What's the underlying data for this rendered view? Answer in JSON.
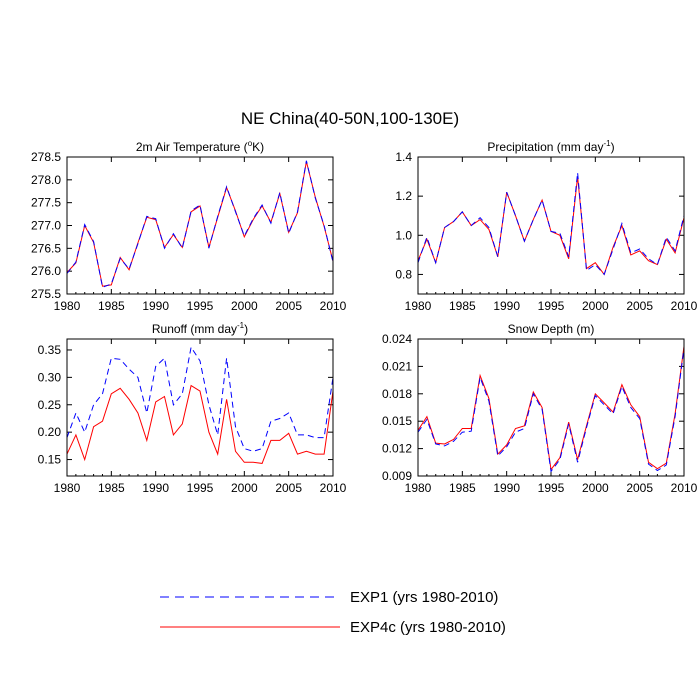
{
  "title": "NE China(40-50N,100-130E)",
  "colors": {
    "exp1": "#0000ff",
    "exp4c": "#ff0000"
  },
  "legend": [
    {
      "label": "EXP1 (yrs 1980-2010)",
      "color": "#0000ff",
      "dash": "dashed"
    },
    {
      "label": "EXP4c (yrs 1980-2010)",
      "color": "#ff0000",
      "dash": "solid"
    }
  ],
  "chart_data": [
    {
      "type": "line",
      "title": "2m Air Temperature (°K)",
      "title_main": "2m Air Temperature (",
      "title_sup": "o",
      "title_end": "K)",
      "x": [
        1980,
        1981,
        1982,
        1983,
        1984,
        1985,
        1986,
        1987,
        1988,
        1989,
        1990,
        1991,
        1992,
        1993,
        1994,
        1995,
        1996,
        1997,
        1998,
        1999,
        2000,
        2001,
        2002,
        2003,
        2004,
        2005,
        2006,
        2007,
        2008,
        2009,
        2010
      ],
      "xlim": [
        1980,
        2010
      ],
      "xticks": [
        "1980",
        "1985",
        "1990",
        "1995",
        "2000",
        "2005",
        "2010"
      ],
      "ylim": [
        275.5,
        278.5
      ],
      "yticks": [
        "275.5",
        "276.0",
        "276.5",
        "277.0",
        "277.5",
        "278.0",
        "278.5"
      ],
      "series": [
        {
          "name": "EXP1",
          "values": [
            275.95,
            276.2,
            277.02,
            276.65,
            275.65,
            275.72,
            276.28,
            276.05,
            276.6,
            277.2,
            277.15,
            276.5,
            276.82,
            276.5,
            277.32,
            277.45,
            276.5,
            277.2,
            277.85,
            277.3,
            276.77,
            277.15,
            277.45,
            277.05,
            277.72,
            276.83,
            277.3,
            278.42,
            277.6,
            277.0,
            276.2
          ]
        },
        {
          "name": "EXP4c",
          "values": [
            275.97,
            276.18,
            277.0,
            276.63,
            275.67,
            275.7,
            276.3,
            276.03,
            276.62,
            277.18,
            277.13,
            276.52,
            276.8,
            276.52,
            277.3,
            277.43,
            276.52,
            277.18,
            277.83,
            277.32,
            276.75,
            277.13,
            277.43,
            277.07,
            277.7,
            276.85,
            277.28,
            278.4,
            277.62,
            276.98,
            276.22
          ]
        }
      ]
    },
    {
      "type": "line",
      "title": "Precipitation (mm day-1)",
      "title_main": "Precipitation (mm day",
      "title_sup": "-1",
      "title_end": ")",
      "x": [
        1980,
        1981,
        1982,
        1983,
        1984,
        1985,
        1986,
        1987,
        1988,
        1989,
        1990,
        1991,
        1992,
        1993,
        1994,
        1995,
        1996,
        1997,
        1998,
        1999,
        2000,
        2001,
        2002,
        2003,
        2004,
        2005,
        2006,
        2007,
        2008,
        2009,
        2010
      ],
      "xlim": [
        1980,
        2010
      ],
      "xticks": [
        "1980",
        "1985",
        "1990",
        "1995",
        "2000",
        "2005",
        "2010"
      ],
      "ylim": [
        0.7,
        1.4
      ],
      "yticks": [
        "0.8",
        "1.0",
        "1.2",
        "1.4"
      ],
      "series": [
        {
          "name": "EXP1",
          "values": [
            0.86,
            0.99,
            0.86,
            1.04,
            1.07,
            1.12,
            1.05,
            1.09,
            1.04,
            0.89,
            1.22,
            1.1,
            0.97,
            1.08,
            1.18,
            1.02,
            1.01,
            0.89,
            1.32,
            0.82,
            0.85,
            0.8,
            0.93,
            1.06,
            0.91,
            0.93,
            0.88,
            0.85,
            0.99,
            0.92,
            1.1
          ]
        },
        {
          "name": "EXP4c",
          "values": [
            0.87,
            0.98,
            0.86,
            1.04,
            1.07,
            1.12,
            1.05,
            1.08,
            1.03,
            0.89,
            1.22,
            1.1,
            0.97,
            1.08,
            1.18,
            1.02,
            1.0,
            0.88,
            1.3,
            0.83,
            0.86,
            0.8,
            0.94,
            1.05,
            0.9,
            0.92,
            0.87,
            0.85,
            0.98,
            0.91,
            1.09
          ]
        }
      ]
    },
    {
      "type": "line",
      "title": "Runoff (mm day-1)",
      "title_main": "Runoff (mm day",
      "title_sup": "-1",
      "title_end": ")",
      "x": [
        1980,
        1981,
        1982,
        1983,
        1984,
        1985,
        1986,
        1987,
        1988,
        1989,
        1990,
        1991,
        1992,
        1993,
        1994,
        1995,
        1996,
        1997,
        1998,
        1999,
        2000,
        2001,
        2002,
        2003,
        2004,
        2005,
        2006,
        2007,
        2008,
        2009,
        2010
      ],
      "xlim": [
        1980,
        2010
      ],
      "xticks": [
        "1980",
        "1985",
        "1990",
        "1995",
        "2000",
        "2005",
        "2010"
      ],
      "ylim": [
        0.12,
        0.37
      ],
      "yticks": [
        "0.15",
        "0.20",
        "0.25",
        "0.30",
        "0.35"
      ],
      "series": [
        {
          "name": "EXP1",
          "values": [
            0.19,
            0.235,
            0.2,
            0.25,
            0.27,
            0.335,
            0.333,
            0.315,
            0.3,
            0.235,
            0.32,
            0.335,
            0.25,
            0.27,
            0.355,
            0.33,
            0.25,
            0.195,
            0.335,
            0.21,
            0.17,
            0.165,
            0.17,
            0.22,
            0.225,
            0.235,
            0.195,
            0.195,
            0.19,
            0.19,
            0.3
          ]
        },
        {
          "name": "EXP4c",
          "values": [
            0.16,
            0.195,
            0.15,
            0.21,
            0.22,
            0.27,
            0.28,
            0.26,
            0.235,
            0.185,
            0.255,
            0.265,
            0.195,
            0.215,
            0.285,
            0.275,
            0.2,
            0.16,
            0.26,
            0.165,
            0.145,
            0.145,
            0.143,
            0.185,
            0.185,
            0.198,
            0.16,
            0.165,
            0.16,
            0.16,
            0.275
          ]
        }
      ]
    },
    {
      "type": "line",
      "title": "Snow Depth (m)",
      "title_main": "Snow Depth (m)",
      "title_sup": "",
      "title_end": "",
      "x": [
        1980,
        1981,
        1982,
        1983,
        1984,
        1985,
        1986,
        1987,
        1988,
        1989,
        1990,
        1991,
        1992,
        1993,
        1994,
        1995,
        1996,
        1997,
        1998,
        1999,
        2000,
        2001,
        2002,
        2003,
        2004,
        2005,
        2006,
        2007,
        2008,
        2009,
        2010
      ],
      "xlim": [
        1980,
        2010
      ],
      "xticks": [
        "1980",
        "1985",
        "1990",
        "1995",
        "2000",
        "2005",
        "2010"
      ],
      "ylim": [
        0.009,
        0.024
      ],
      "yticks": [
        "0.009",
        "0.012",
        "0.015",
        "0.018",
        "0.021",
        "0.024"
      ],
      "series": [
        {
          "name": "EXP1",
          "values": [
            0.0138,
            0.0152,
            0.0125,
            0.0123,
            0.0128,
            0.0138,
            0.0139,
            0.0198,
            0.0172,
            0.0112,
            0.0122,
            0.0138,
            0.0142,
            0.018,
            0.0163,
            0.0095,
            0.0108,
            0.0147,
            0.0105,
            0.0143,
            0.0178,
            0.0168,
            0.0158,
            0.0188,
            0.0165,
            0.0153,
            0.0103,
            0.0096,
            0.0102,
            0.0155,
            0.023
          ]
        },
        {
          "name": "EXP4c",
          "values": [
            0.014,
            0.0155,
            0.0126,
            0.0125,
            0.013,
            0.0142,
            0.0142,
            0.02,
            0.0175,
            0.0114,
            0.0124,
            0.0142,
            0.0145,
            0.0182,
            0.0165,
            0.0097,
            0.011,
            0.0149,
            0.0108,
            0.0145,
            0.018,
            0.017,
            0.016,
            0.019,
            0.0168,
            0.0155,
            0.0105,
            0.0098,
            0.0104,
            0.0158,
            0.0232
          ]
        }
      ]
    }
  ]
}
